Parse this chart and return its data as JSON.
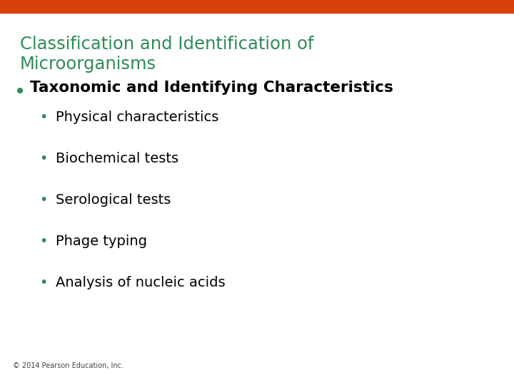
{
  "title_line1": "Classification and Identification of",
  "title_line2": "Microorganisms",
  "title_color": "#2e8b57",
  "top_bar_color": "#d9400a",
  "background_color": "#ffffff",
  "bullet1_dot_color": "#2e8b57",
  "bullet1_text": "Taxonomic and Identifying Characteristics",
  "sub_bullets": [
    "Physical characteristics",
    "Biochemical tests",
    "Serological tests",
    "Phage typing",
    "Analysis of nucleic acids"
  ],
  "sub_bullet_color": "#2e8b57",
  "sub_text_color": "#000000",
  "footer_text": "© 2014 Pearson Education, Inc.",
  "footer_color": "#444444"
}
